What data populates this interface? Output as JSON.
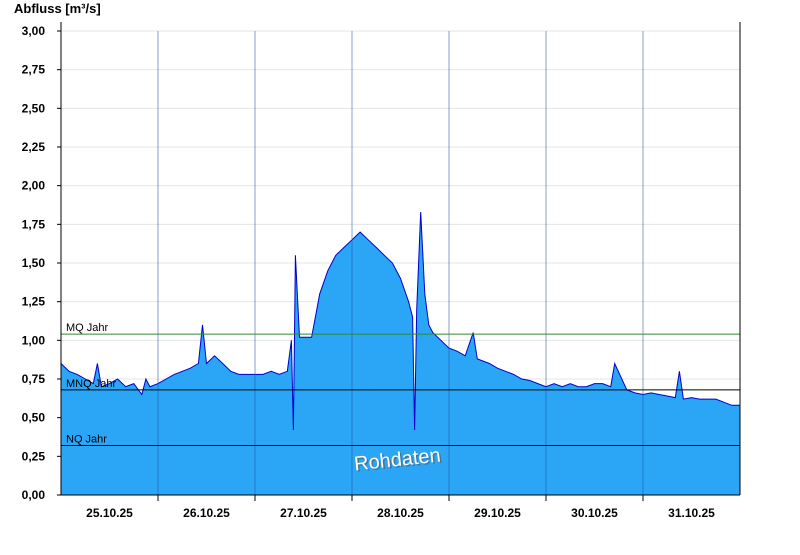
{
  "chart_data": {
    "type": "area",
    "ylabel": "Abfluss [m³/s]",
    "annotation": "Rohdaten",
    "color": "#2ba6f7",
    "line_color": "#0000c8",
    "grid": true,
    "xlim": [
      0,
      168
    ],
    "ylim": [
      0,
      3
    ],
    "yticks": [
      {
        "value": 0,
        "label": "0,00"
      },
      {
        "value": 0.25,
        "label": "0,25"
      },
      {
        "value": 0.5,
        "label": "0,50"
      },
      {
        "value": 0.75,
        "label": "0,75"
      },
      {
        "value": 1,
        "label": "1,00"
      },
      {
        "value": 1.25,
        "label": "1,25"
      },
      {
        "value": 1.5,
        "label": "1,50"
      },
      {
        "value": 1.75,
        "label": "1,75"
      },
      {
        "value": 2,
        "label": "2,00"
      },
      {
        "value": 2.25,
        "label": "2,25"
      },
      {
        "value": 2.5,
        "label": "2,50"
      },
      {
        "value": 2.75,
        "label": "2,75"
      },
      {
        "value": 3,
        "label": "3,00"
      }
    ],
    "xticks": [
      {
        "value": 12,
        "label": "25.10.25"
      },
      {
        "value": 36,
        "label": "26.10.25"
      },
      {
        "value": 60,
        "label": "27.10.25"
      },
      {
        "value": 84,
        "label": "28.10.25"
      },
      {
        "value": 108,
        "label": "29.10.25"
      },
      {
        "value": 132,
        "label": "30.10.25"
      },
      {
        "value": 156,
        "label": "31.10.25"
      }
    ],
    "xgrid": [
      24,
      48,
      72,
      96,
      120,
      144
    ],
    "reference_lines": [
      {
        "label": "MQ Jahr",
        "value": 1.04,
        "color": "#2e8b2e"
      },
      {
        "label": "MNQ Jahr",
        "value": 0.68,
        "color": "#000000"
      },
      {
        "label": "NQ Jahr",
        "value": 0.32,
        "color": "#000000"
      }
    ],
    "x": [
      0,
      2,
      4,
      6,
      8,
      9,
      10,
      12,
      14,
      16,
      18,
      20,
      21,
      22,
      24,
      26,
      28,
      30,
      32,
      34,
      35,
      36,
      38,
      40,
      42,
      44,
      46,
      48,
      50,
      52,
      54,
      56,
      57,
      57.5,
      58,
      59,
      60,
      62,
      64,
      66,
      68,
      70,
      72,
      74,
      76,
      78,
      80,
      82,
      84,
      86,
      87,
      87.5,
      88,
      89,
      90,
      91,
      92,
      94,
      96,
      98,
      100,
      102,
      103,
      106,
      108,
      110,
      112,
      114,
      116,
      118,
      120,
      122,
      124,
      126,
      128,
      130,
      132,
      134,
      136,
      137,
      140,
      142,
      144,
      146,
      148,
      150,
      152,
      153,
      154,
      156,
      158,
      160,
      162,
      164,
      166,
      168
    ],
    "values": [
      0.85,
      0.8,
      0.78,
      0.75,
      0.72,
      0.85,
      0.7,
      0.72,
      0.75,
      0.7,
      0.72,
      0.65,
      0.75,
      0.7,
      0.72,
      0.75,
      0.78,
      0.8,
      0.82,
      0.85,
      1.1,
      0.85,
      0.9,
      0.85,
      0.8,
      0.78,
      0.78,
      0.78,
      0.78,
      0.8,
      0.78,
      0.8,
      1.0,
      0.42,
      1.55,
      1.02,
      1.02,
      1.02,
      1.3,
      1.45,
      1.55,
      1.6,
      1.65,
      1.7,
      1.65,
      1.6,
      1.55,
      1.5,
      1.4,
      1.25,
      1.15,
      0.42,
      1.2,
      1.83,
      1.3,
      1.1,
      1.05,
      1.0,
      0.95,
      0.93,
      0.9,
      1.05,
      0.88,
      0.85,
      0.82,
      0.8,
      0.78,
      0.75,
      0.74,
      0.72,
      0.7,
      0.72,
      0.7,
      0.72,
      0.7,
      0.7,
      0.72,
      0.72,
      0.7,
      0.85,
      0.68,
      0.66,
      0.65,
      0.66,
      0.65,
      0.64,
      0.63,
      0.8,
      0.62,
      0.63,
      0.62,
      0.62,
      0.62,
      0.6,
      0.58,
      0.58
    ]
  }
}
